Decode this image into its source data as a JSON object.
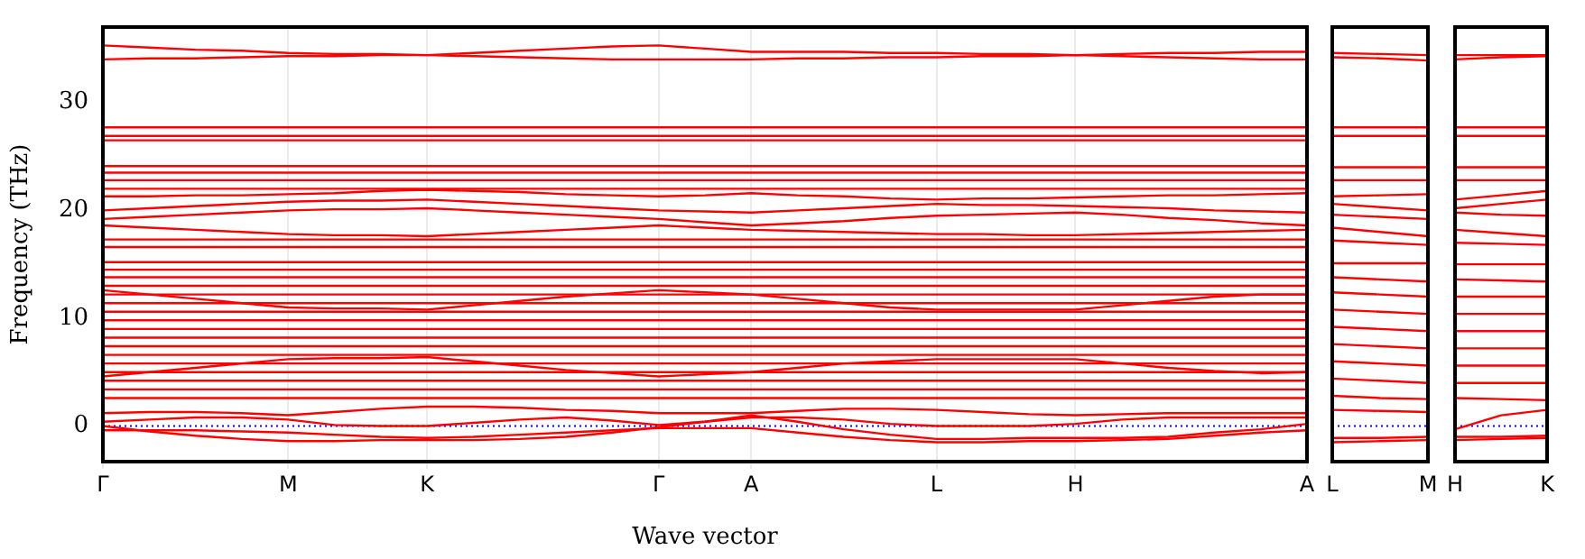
{
  "chart_data": [
    {
      "type": "line",
      "xlabel": "Wave vector",
      "ylabel": "Frequency (THz)",
      "marker": "none",
      "grid": "x",
      "categories": [
        "Γ",
        null,
        null,
        null,
        "M",
        null,
        null,
        "K",
        null,
        null,
        null,
        null,
        "Γ",
        null,
        "A",
        null,
        null,
        null,
        "L",
        null,
        null,
        "H",
        null,
        null,
        null,
        null,
        "A"
      ],
      "ylim": [
        -3.3,
        37
      ],
      "yticks": [
        0,
        10,
        20,
        30
      ],
      "ref_lines": [
        {
          "axis": "y",
          "value": 0,
          "color": "#0000ff",
          "line_style": "dotted"
        }
      ],
      "series": [
        {
          "color": "#ff0000",
          "values": [
            35.3,
            35.1,
            34.9,
            34.8,
            34.6,
            34.5,
            34.5,
            34.4,
            34.6,
            34.8,
            35.0,
            35.2,
            35.3,
            35.0,
            34.7,
            34.7,
            34.7,
            34.6,
            34.6,
            34.5,
            34.5,
            34.4,
            34.5,
            34.6,
            34.6,
            34.7,
            34.7
          ]
        },
        {
          "color": "#ff0000",
          "values": [
            34.0,
            34.1,
            34.1,
            34.2,
            34.3,
            34.3,
            34.4,
            34.4,
            34.3,
            34.2,
            34.1,
            34.0,
            34.0,
            34.0,
            34.0,
            34.1,
            34.1,
            34.2,
            34.2,
            34.3,
            34.3,
            34.4,
            34.3,
            34.2,
            34.1,
            34.0,
            34.0
          ]
        },
        {
          "color": "#ff0000",
          "values": [
            27.7,
            27.7,
            27.7,
            27.7,
            27.7,
            27.7,
            27.7,
            27.7,
            27.7,
            27.7,
            27.7,
            27.7,
            27.7,
            27.7,
            27.7,
            27.7,
            27.7,
            27.7,
            27.7,
            27.7,
            27.7,
            27.7,
            27.7,
            27.7,
            27.7,
            27.7,
            27.7
          ]
        },
        {
          "color": "#ff0000",
          "values": [
            26.9,
            26.9,
            26.9,
            26.9,
            26.9,
            26.9,
            26.9,
            26.9,
            26.9,
            26.9,
            26.9,
            26.9,
            26.9,
            26.9,
            26.9,
            26.9,
            26.9,
            26.9,
            26.9,
            26.9,
            26.9,
            26.9,
            26.9,
            26.9,
            26.9,
            26.9,
            26.9
          ]
        },
        {
          "color": "#ff0000",
          "values": [
            26.5,
            26.5,
            26.5,
            26.5,
            26.5,
            26.5,
            26.5,
            26.5,
            26.5,
            26.5,
            26.5,
            26.5,
            26.5,
            26.5,
            26.5,
            26.5,
            26.5,
            26.5,
            26.5,
            26.5,
            26.5,
            26.5,
            26.5,
            26.5,
            26.5,
            26.5,
            26.5
          ]
        },
        {
          "color": "#ff0000",
          "values": [
            24.1,
            24.1,
            24.1,
            24.1,
            24.1,
            24.1,
            24.1,
            24.1,
            24.1,
            24.1,
            24.1,
            24.1,
            24.1,
            24.1,
            24.1,
            24.1,
            24.1,
            24.1,
            24.1,
            24.1,
            24.1,
            24.1,
            24.1,
            24.1,
            24.1,
            24.1,
            24.1
          ]
        },
        {
          "color": "#ff0000",
          "values": [
            23.5,
            23.5,
            23.5,
            23.5,
            23.5,
            23.5,
            23.5,
            23.5,
            23.5,
            23.5,
            23.5,
            23.5,
            23.5,
            23.5,
            23.5,
            23.5,
            23.5,
            23.5,
            23.5,
            23.5,
            23.5,
            23.5,
            23.5,
            23.5,
            23.5,
            23.5,
            23.5
          ]
        },
        {
          "color": "#ff0000",
          "values": [
            22.8,
            22.8,
            22.8,
            22.8,
            22.8,
            22.8,
            22.8,
            22.8,
            22.8,
            22.8,
            22.8,
            22.8,
            22.8,
            22.8,
            22.8,
            22.8,
            22.8,
            22.8,
            22.8,
            22.8,
            22.8,
            22.8,
            22.8,
            22.8,
            22.8,
            22.8,
            22.8
          ]
        },
        {
          "color": "#ff0000",
          "values": [
            22.0,
            22.0,
            22.0,
            22.0,
            22.0,
            22.0,
            22.0,
            22.0,
            22.0,
            22.0,
            22.0,
            22.0,
            22.0,
            22.0,
            22.0,
            22.0,
            22.0,
            22.0,
            22.0,
            22.0,
            22.0,
            22.0,
            22.0,
            22.0,
            22.0,
            22.0,
            22.0
          ]
        },
        {
          "color": "#ff0000",
          "values": [
            21.3,
            21.3,
            21.4,
            21.4,
            21.5,
            21.6,
            21.8,
            21.9,
            21.8,
            21.7,
            21.5,
            21.4,
            21.3,
            21.4,
            21.6,
            21.4,
            21.3,
            21.1,
            21.0,
            21.1,
            21.1,
            21.2,
            21.3,
            21.4,
            21.4,
            21.5,
            21.6
          ]
        },
        {
          "color": "#ff0000",
          "values": [
            20.0,
            20.2,
            20.4,
            20.6,
            20.8,
            20.9,
            20.9,
            21.0,
            20.8,
            20.6,
            20.4,
            20.2,
            20.0,
            19.9,
            19.8,
            20.0,
            20.2,
            20.4,
            20.6,
            20.5,
            20.5,
            20.4,
            20.3,
            20.2,
            20.0,
            19.9,
            19.8
          ]
        },
        {
          "color": "#ff0000",
          "values": [
            19.2,
            19.4,
            19.6,
            19.8,
            20.0,
            20.1,
            20.1,
            20.2,
            20.0,
            19.8,
            19.6,
            19.4,
            19.2,
            18.9,
            18.6,
            18.8,
            19.0,
            19.3,
            19.5,
            19.6,
            19.7,
            19.8,
            19.6,
            19.3,
            19.1,
            18.8,
            18.6
          ]
        },
        {
          "color": "#ff0000",
          "values": [
            18.6,
            18.4,
            18.2,
            18.0,
            17.8,
            17.7,
            17.7,
            17.6,
            17.8,
            18.0,
            18.2,
            18.4,
            18.6,
            18.4,
            18.2,
            18.1,
            18.0,
            17.9,
            17.8,
            17.8,
            17.7,
            17.7,
            17.8,
            17.9,
            18.0,
            18.1,
            18.2
          ]
        },
        {
          "color": "#ff0000",
          "values": [
            17.3,
            17.3,
            17.3,
            17.3,
            17.3,
            17.3,
            17.3,
            17.3,
            17.3,
            17.3,
            17.3,
            17.3,
            17.3,
            17.3,
            17.3,
            17.3,
            17.3,
            17.3,
            17.3,
            17.3,
            17.3,
            17.3,
            17.3,
            17.3,
            17.3,
            17.3,
            17.3
          ]
        },
        {
          "color": "#ff0000",
          "values": [
            16.6,
            16.6,
            16.6,
            16.6,
            16.6,
            16.6,
            16.6,
            16.6,
            16.6,
            16.6,
            16.6,
            16.6,
            16.6,
            16.6,
            16.6,
            16.6,
            16.6,
            16.6,
            16.6,
            16.6,
            16.6,
            16.6,
            16.6,
            16.6,
            16.6,
            16.6,
            16.6
          ]
        },
        {
          "color": "#ff0000",
          "values": [
            15.2,
            15.2,
            15.2,
            15.2,
            15.2,
            15.2,
            15.2,
            15.2,
            15.2,
            15.2,
            15.2,
            15.2,
            15.2,
            15.2,
            15.2,
            15.2,
            15.2,
            15.2,
            15.2,
            15.2,
            15.2,
            15.2,
            15.2,
            15.2,
            15.2,
            15.2,
            15.2
          ]
        },
        {
          "color": "#ff0000",
          "values": [
            14.5,
            14.5,
            14.5,
            14.5,
            14.5,
            14.5,
            14.5,
            14.5,
            14.5,
            14.5,
            14.5,
            14.5,
            14.5,
            14.5,
            14.5,
            14.5,
            14.5,
            14.5,
            14.5,
            14.5,
            14.5,
            14.5,
            14.5,
            14.5,
            14.5,
            14.5,
            14.5
          ]
        },
        {
          "color": "#ff0000",
          "values": [
            13.8,
            13.8,
            13.8,
            13.8,
            13.8,
            13.8,
            13.8,
            13.8,
            13.8,
            13.8,
            13.8,
            13.8,
            13.8,
            13.8,
            13.8,
            13.8,
            13.8,
            13.8,
            13.8,
            13.8,
            13.8,
            13.8,
            13.8,
            13.8,
            13.8,
            13.8,
            13.8
          ]
        },
        {
          "color": "#ff0000",
          "values": [
            13.0,
            13.0,
            13.0,
            13.0,
            13.0,
            13.0,
            13.0,
            13.0,
            13.0,
            13.0,
            13.0,
            13.0,
            13.0,
            13.0,
            13.0,
            13.0,
            13.0,
            13.0,
            13.0,
            13.0,
            13.0,
            13.0,
            13.0,
            13.0,
            13.0,
            13.0,
            13.0
          ]
        },
        {
          "color": "#ff0000",
          "values": [
            12.6,
            12.2,
            11.8,
            11.4,
            11.0,
            10.9,
            10.9,
            10.8,
            11.2,
            11.6,
            12.0,
            12.3,
            12.6,
            12.4,
            12.2,
            11.8,
            11.4,
            11.0,
            10.8,
            10.8,
            10.8,
            10.8,
            11.2,
            11.6,
            12.0,
            12.2,
            12.2
          ]
        },
        {
          "color": "#ff0000",
          "values": [
            12.2,
            12.2,
            12.2,
            12.2,
            12.2,
            12.2,
            12.2,
            12.2,
            12.2,
            12.2,
            12.2,
            12.2,
            12.2,
            12.2,
            12.2,
            12.2,
            12.2,
            12.2,
            12.2,
            12.2,
            12.2,
            12.2,
            12.2,
            12.2,
            12.2,
            12.2,
            12.2
          ]
        },
        {
          "color": "#ff0000",
          "values": [
            11.4,
            11.4,
            11.4,
            11.4,
            11.4,
            11.4,
            11.4,
            11.4,
            11.4,
            11.4,
            11.4,
            11.4,
            11.4,
            11.4,
            11.4,
            11.4,
            11.4,
            11.4,
            11.4,
            11.4,
            11.4,
            11.4,
            11.4,
            11.4,
            11.4,
            11.4,
            11.4
          ]
        },
        {
          "color": "#ff0000",
          "values": [
            10.6,
            10.6,
            10.6,
            10.6,
            10.6,
            10.6,
            10.6,
            10.6,
            10.6,
            10.6,
            10.6,
            10.6,
            10.6,
            10.6,
            10.6,
            10.6,
            10.6,
            10.6,
            10.6,
            10.6,
            10.6,
            10.6,
            10.6,
            10.6,
            10.6,
            10.6,
            10.6
          ]
        },
        {
          "color": "#ff0000",
          "values": [
            9.8,
            9.8,
            9.8,
            9.8,
            9.8,
            9.8,
            9.8,
            9.8,
            9.8,
            9.8,
            9.8,
            9.8,
            9.8,
            9.8,
            9.8,
            9.8,
            9.8,
            9.8,
            9.8,
            9.8,
            9.8,
            9.8,
            9.8,
            9.8,
            9.8,
            9.8,
            9.8
          ]
        },
        {
          "color": "#ff0000",
          "values": [
            9.0,
            9.0,
            9.0,
            9.0,
            9.0,
            9.0,
            9.0,
            9.0,
            9.0,
            9.0,
            9.0,
            9.0,
            9.0,
            9.0,
            9.0,
            9.0,
            9.0,
            9.0,
            9.0,
            9.0,
            9.0,
            9.0,
            9.0,
            9.0,
            9.0,
            9.0,
            9.0
          ]
        },
        {
          "color": "#ff0000",
          "values": [
            8.2,
            8.2,
            8.2,
            8.2,
            8.2,
            8.2,
            8.2,
            8.2,
            8.2,
            8.2,
            8.2,
            8.2,
            8.2,
            8.2,
            8.2,
            8.2,
            8.2,
            8.2,
            8.2,
            8.2,
            8.2,
            8.2,
            8.2,
            8.2,
            8.2,
            8.2,
            8.2
          ]
        },
        {
          "color": "#ff0000",
          "values": [
            7.4,
            7.4,
            7.4,
            7.4,
            7.4,
            7.4,
            7.4,
            7.4,
            7.4,
            7.4,
            7.4,
            7.4,
            7.4,
            7.4,
            7.4,
            7.4,
            7.4,
            7.4,
            7.4,
            7.4,
            7.4,
            7.4,
            7.4,
            7.4,
            7.4,
            7.4,
            7.4
          ]
        },
        {
          "color": "#ff0000",
          "values": [
            6.6,
            6.6,
            6.6,
            6.6,
            6.6,
            6.6,
            6.6,
            6.6,
            6.6,
            6.6,
            6.6,
            6.6,
            6.6,
            6.6,
            6.6,
            6.6,
            6.6,
            6.6,
            6.6,
            6.6,
            6.6,
            6.6,
            6.6,
            6.6,
            6.6,
            6.6,
            6.6
          ]
        },
        {
          "color": "#ff0000",
          "values": [
            5.8,
            5.8,
            5.8,
            5.8,
            5.8,
            5.8,
            5.8,
            5.8,
            5.8,
            5.8,
            5.8,
            5.8,
            5.8,
            5.8,
            5.8,
            5.8,
            5.8,
            5.8,
            5.8,
            5.8,
            5.8,
            5.8,
            5.8,
            5.8,
            5.8,
            5.8,
            5.8
          ]
        },
        {
          "color": "#ff0000",
          "values": [
            4.6,
            5.0,
            5.4,
            5.8,
            6.2,
            6.3,
            6.3,
            6.4,
            6.0,
            5.6,
            5.2,
            4.9,
            4.6,
            4.8,
            5.0,
            5.4,
            5.8,
            6.0,
            6.2,
            6.2,
            6.2,
            6.2,
            5.8,
            5.4,
            5.1,
            4.9,
            5.0
          ]
        },
        {
          "color": "#ff0000",
          "values": [
            5.0,
            5.0,
            5.0,
            5.0,
            5.0,
            5.0,
            5.0,
            5.0,
            5.0,
            5.0,
            5.0,
            5.0,
            5.0,
            5.0,
            5.0,
            5.0,
            5.0,
            5.0,
            5.0,
            5.0,
            5.0,
            5.0,
            5.0,
            5.0,
            5.0,
            5.0,
            5.0
          ]
        },
        {
          "color": "#ff0000",
          "values": [
            4.2,
            4.2,
            4.2,
            4.2,
            4.2,
            4.2,
            4.2,
            4.2,
            4.2,
            4.2,
            4.2,
            4.2,
            4.2,
            4.2,
            4.2,
            4.2,
            4.2,
            4.2,
            4.2,
            4.2,
            4.2,
            4.2,
            4.2,
            4.2,
            4.2,
            4.2,
            4.2
          ]
        },
        {
          "color": "#ff0000",
          "values": [
            3.4,
            3.4,
            3.4,
            3.4,
            3.4,
            3.4,
            3.4,
            3.4,
            3.4,
            3.4,
            3.4,
            3.4,
            3.4,
            3.4,
            3.4,
            3.4,
            3.4,
            3.4,
            3.4,
            3.4,
            3.4,
            3.4,
            3.4,
            3.4,
            3.4,
            3.4,
            3.4
          ]
        },
        {
          "color": "#ff0000",
          "values": [
            2.6,
            2.6,
            2.6,
            2.6,
            2.6,
            2.6,
            2.6,
            2.6,
            2.6,
            2.6,
            2.6,
            2.6,
            2.6,
            2.6,
            2.6,
            2.6,
            2.6,
            2.6,
            2.6,
            2.6,
            2.6,
            2.6,
            2.6,
            2.6,
            2.6,
            2.6,
            2.6
          ]
        },
        {
          "color": "#ff0000",
          "values": [
            1.2,
            1.3,
            1.3,
            1.2,
            1.0,
            1.3,
            1.6,
            1.8,
            1.8,
            1.7,
            1.5,
            1.4,
            1.2,
            1.2,
            1.2,
            1.4,
            1.6,
            1.6,
            1.5,
            1.3,
            1.1,
            1.0,
            1.1,
            1.2,
            1.2,
            1.2,
            1.2
          ]
        },
        {
          "color": "#ff0000",
          "values": [
            0.4,
            0.6,
            0.8,
            0.8,
            0.6,
            0.1,
            0,
            0,
            0.3,
            0.6,
            0.8,
            0.5,
            0.1,
            0.4,
            0.8,
            0.8,
            0.6,
            0.2,
            0,
            0,
            0,
            0.2,
            0.6,
            0.8,
            0.8,
            0.8,
            0.8
          ]
        },
        {
          "color": "#ff0000",
          "values": [
            0,
            -0.5,
            -0.9,
            -1.2,
            -1.4,
            -1.4,
            -1.3,
            -1.3,
            -1.3,
            -1.2,
            -1.0,
            -0.6,
            -0.1,
            0.4,
            1.0,
            0.4,
            -0.3,
            -0.8,
            -1.2,
            -1.2,
            -1.1,
            -1.1,
            -1.1,
            -1.0,
            -0.6,
            -0.3,
            0.2
          ]
        },
        {
          "color": "#ff0000",
          "values": [
            -0.4,
            -0.4,
            -0.4,
            -0.5,
            -0.6,
            -0.8,
            -1.0,
            -1.1,
            -1.0,
            -0.8,
            -0.6,
            -0.4,
            -0.2,
            -0.2,
            -0.2,
            -0.6,
            -1.0,
            -1.3,
            -1.5,
            -1.5,
            -1.4,
            -1.4,
            -1.3,
            -1.2,
            -0.9,
            -0.6,
            -0.4
          ]
        }
      ]
    },
    {
      "type": "line",
      "marker": "none",
      "tick_labels": "x",
      "categories": [
        "L",
        null,
        "M"
      ],
      "ylim": [
        -3.3,
        37
      ],
      "ref_lines": [
        {
          "axis": "y",
          "value": 0,
          "color": "#0000ff",
          "line_style": "dotted"
        }
      ],
      "series": [
        {
          "color": "#ff0000",
          "values": [
            34.6,
            34.5,
            34.4
          ]
        },
        {
          "color": "#ff0000",
          "values": [
            34.2,
            34.1,
            33.9
          ]
        },
        {
          "color": "#ff0000",
          "values": [
            27.7,
            27.7,
            27.7
          ]
        },
        {
          "color": "#ff0000",
          "values": [
            26.9,
            26.9,
            26.9
          ]
        },
        {
          "color": "#ff0000",
          "values": [
            24.0,
            24.0,
            24.0
          ]
        },
        {
          "color": "#ff0000",
          "values": [
            22.8,
            22.8,
            22.8
          ]
        },
        {
          "color": "#ff0000",
          "values": [
            21.3,
            21.4,
            21.5
          ]
        },
        {
          "color": "#ff0000",
          "values": [
            20.6,
            20.3,
            20.0
          ]
        },
        {
          "color": "#ff0000",
          "values": [
            19.6,
            19.4,
            19.2
          ]
        },
        {
          "color": "#ff0000",
          "values": [
            18.4,
            18.0,
            17.6
          ]
        },
        {
          "color": "#ff0000",
          "values": [
            17.2,
            17.0,
            16.8
          ]
        },
        {
          "color": "#ff0000",
          "values": [
            15.1,
            15.1,
            15.1
          ]
        },
        {
          "color": "#ff0000",
          "values": [
            13.8,
            13.6,
            13.4
          ]
        },
        {
          "color": "#ff0000",
          "values": [
            12.4,
            12.2,
            12.0
          ]
        },
        {
          "color": "#ff0000",
          "values": [
            10.8,
            10.6,
            10.4
          ]
        },
        {
          "color": "#ff0000",
          "values": [
            9.2,
            9.0,
            8.8
          ]
        },
        {
          "color": "#ff0000",
          "values": [
            7.6,
            7.4,
            7.2
          ]
        },
        {
          "color": "#ff0000",
          "values": [
            6.0,
            5.8,
            5.6
          ]
        },
        {
          "color": "#ff0000",
          "values": [
            4.4,
            4.2,
            4.0
          ]
        },
        {
          "color": "#ff0000",
          "values": [
            2.8,
            2.6,
            2.5
          ]
        },
        {
          "color": "#ff0000",
          "values": [
            1.5,
            1.4,
            1.3
          ]
        },
        {
          "color": "#ff0000",
          "values": [
            -1.1,
            -1.1,
            -1.0
          ]
        },
        {
          "color": "#ff0000",
          "values": [
            -1.5,
            -1.4,
            -1.3
          ]
        }
      ]
    },
    {
      "type": "line",
      "marker": "none",
      "tick_labels": "x",
      "categories": [
        "H",
        null,
        "K"
      ],
      "ylim": [
        -3.3,
        37
      ],
      "ref_lines": [
        {
          "axis": "y",
          "value": 0,
          "color": "#0000ff",
          "line_style": "dotted"
        }
      ],
      "series": [
        {
          "color": "#ff0000",
          "values": [
            34.4,
            34.4,
            34.4
          ]
        },
        {
          "color": "#ff0000",
          "values": [
            34.0,
            34.2,
            34.3
          ]
        },
        {
          "color": "#ff0000",
          "values": [
            27.7,
            27.7,
            27.7
          ]
        },
        {
          "color": "#ff0000",
          "values": [
            26.9,
            26.9,
            26.9
          ]
        },
        {
          "color": "#ff0000",
          "values": [
            24.0,
            24.0,
            24.0
          ]
        },
        {
          "color": "#ff0000",
          "values": [
            22.8,
            22.8,
            22.8
          ]
        },
        {
          "color": "#ff0000",
          "values": [
            21.0,
            21.4,
            21.8
          ]
        },
        {
          "color": "#ff0000",
          "values": [
            20.2,
            20.6,
            21.0
          ]
        },
        {
          "color": "#ff0000",
          "values": [
            19.8,
            19.6,
            19.5
          ]
        },
        {
          "color": "#ff0000",
          "values": [
            18.2,
            17.9,
            17.6
          ]
        },
        {
          "color": "#ff0000",
          "values": [
            17.0,
            16.9,
            16.8
          ]
        },
        {
          "color": "#ff0000",
          "values": [
            15.0,
            15.0,
            15.0
          ]
        },
        {
          "color": "#ff0000",
          "values": [
            13.6,
            13.5,
            13.4
          ]
        },
        {
          "color": "#ff0000",
          "values": [
            12.0,
            12.0,
            12.0
          ]
        },
        {
          "color": "#ff0000",
          "values": [
            10.4,
            10.4,
            10.4
          ]
        },
        {
          "color": "#ff0000",
          "values": [
            8.8,
            8.8,
            8.8
          ]
        },
        {
          "color": "#ff0000",
          "values": [
            7.2,
            7.2,
            7.2
          ]
        },
        {
          "color": "#ff0000",
          "values": [
            5.6,
            5.6,
            5.6
          ]
        },
        {
          "color": "#ff0000",
          "values": [
            4.0,
            4.0,
            4.0
          ]
        },
        {
          "color": "#ff0000",
          "values": [
            2.6,
            2.5,
            2.4
          ]
        },
        {
          "color": "#ff0000",
          "values": [
            -0.3,
            1.0,
            1.5
          ]
        },
        {
          "color": "#ff0000",
          "values": [
            -1.0,
            -1.0,
            -0.9
          ]
        },
        {
          "color": "#ff0000",
          "values": [
            -1.3,
            -1.2,
            -1.1
          ]
        }
      ]
    }
  ]
}
